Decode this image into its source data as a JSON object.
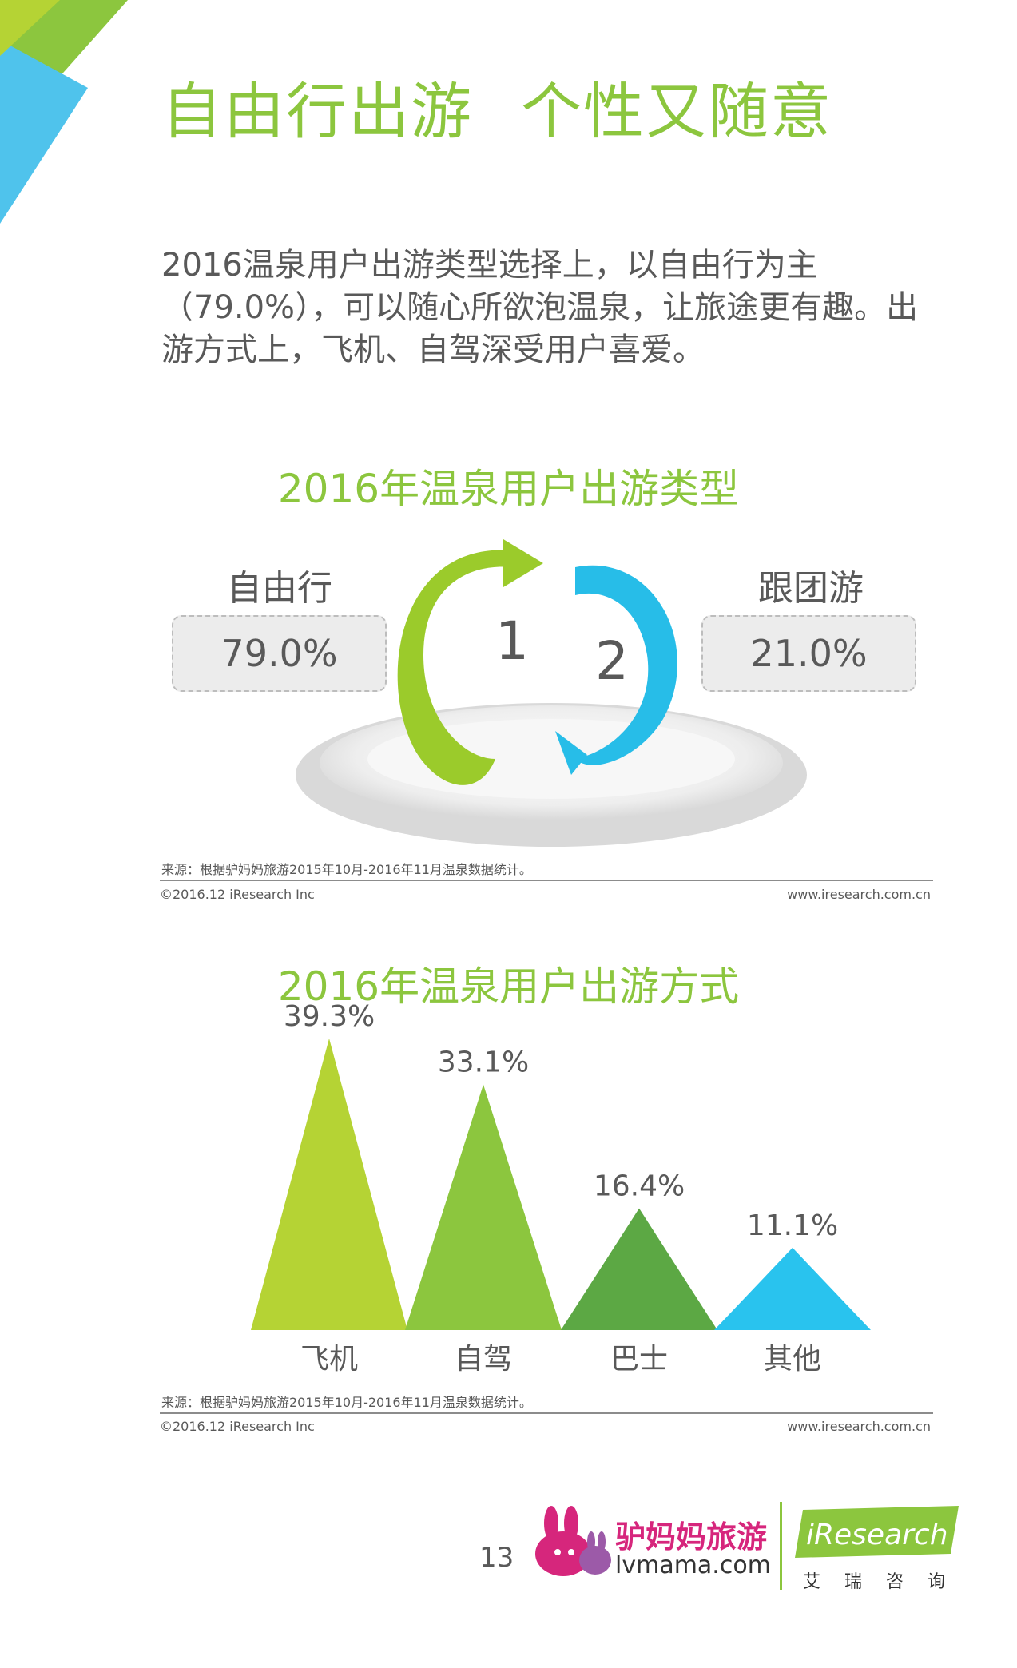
{
  "headline": {
    "part1": "自由行出游",
    "part2": "个性又随意"
  },
  "intro": "2016温泉用户出游类型选择上，以自由行为主（79.0%），可以随心所欲泡温泉，让旅途更有趣。出游方式上，飞机、自驾深受用户喜爱。",
  "colors": {
    "green": "#8cc63e",
    "light_green": "#b5d334",
    "mid_green": "#74b843",
    "dark_green": "#5ca844",
    "blue": "#29c3ee"
  },
  "chart1": {
    "title": "2016年温泉用户出游类型",
    "left_label": "自由行",
    "left_value": "79.0%",
    "right_label": "跟团游",
    "right_value": "21.0%",
    "rank1": "1",
    "rank2": "2",
    "source": "来源：根据驴妈妈旅游2015年10月-2016年11月温泉数据统计。"
  },
  "chart2": {
    "title": "2016年温泉用户出游方式",
    "source": "来源：根据驴妈妈旅游2015年10月-2016年11月温泉数据统计。"
  },
  "chart_data": [
    {
      "type": "pie",
      "title": "2016年温泉用户出游类型",
      "categories": [
        "自由行",
        "跟团游"
      ],
      "values": [
        79.0,
        21.0
      ],
      "unit": "%"
    },
    {
      "type": "bar",
      "title": "2016年温泉用户出游方式",
      "categories": [
        "飞机",
        "自驾",
        "巴士",
        "其他"
      ],
      "values": [
        39.3,
        33.1,
        16.4,
        11.1
      ],
      "labels": [
        "39.3%",
        "33.1%",
        "16.4%",
        "11.1%"
      ],
      "unit": "%",
      "ylim": [
        0,
        39.3
      ],
      "colors": [
        "#b5d334",
        "#8cc63e",
        "#5ca844",
        "#29c3ee"
      ]
    }
  ],
  "footer": {
    "copyright": "©2016.12 iResearch Inc",
    "url": "www.iresearch.com.cn"
  },
  "page_number": "13",
  "brand": {
    "lvmama_cn": "驴妈妈旅游",
    "lvmama_en": "lvmama.com",
    "iresearch": "iResearch",
    "iresearch_cn": "艾瑞咨询"
  }
}
